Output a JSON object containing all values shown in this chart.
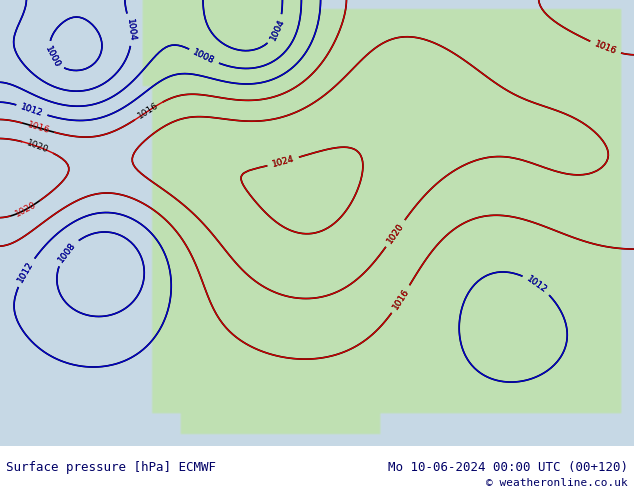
{
  "title_left": "Surface pressure [hPa] ECMWF",
  "title_right": "Mo 10-06-2024 00:00 UTC (00+120)",
  "copyright": "© weatheronline.co.uk",
  "bg_color": "#c8d8e8",
  "map_bg": "#c8d8e8",
  "bottom_bar_color": "#ffffff",
  "bottom_text_color": "#000080",
  "fig_width": 6.34,
  "fig_height": 4.9,
  "dpi": 100
}
